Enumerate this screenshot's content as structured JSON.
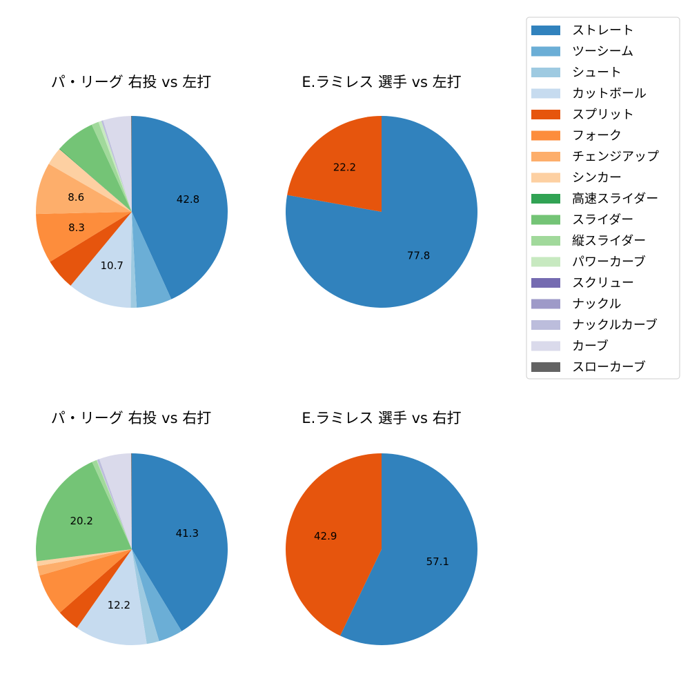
{
  "chart_data": [
    {
      "type": "pie",
      "title": "パ・リーグ 右投 vs 左打",
      "slices": [
        {
          "category": "ストレート",
          "value": 42.8,
          "label": "42.8"
        },
        {
          "category": "ツーシーム",
          "value": 5.9,
          "label": ""
        },
        {
          "category": "シュート",
          "value": 1.0,
          "label": ""
        },
        {
          "category": "カットボール",
          "value": 10.7,
          "label": "10.7"
        },
        {
          "category": "スプリット",
          "value": 5.2,
          "label": ""
        },
        {
          "category": "フォーク",
          "value": 8.3,
          "label": "8.3"
        },
        {
          "category": "チェンジアップ",
          "value": 8.6,
          "label": "8.6"
        },
        {
          "category": "シンカー",
          "value": 3.0,
          "label": ""
        },
        {
          "category": "高速スライダー",
          "value": 0.1,
          "label": ""
        },
        {
          "category": "スライダー",
          "value": 6.6,
          "label": ""
        },
        {
          "category": "縦スライダー",
          "value": 1.2,
          "label": ""
        },
        {
          "category": "パワーカーブ",
          "value": 0.5,
          "label": ""
        },
        {
          "category": "スクリュー",
          "value": 0.0,
          "label": ""
        },
        {
          "category": "ナックル",
          "value": 0.0,
          "label": ""
        },
        {
          "category": "ナックルカーブ",
          "value": 0.3,
          "label": ""
        },
        {
          "category": "カーブ",
          "value": 4.7,
          "label": ""
        },
        {
          "category": "スローカーブ",
          "value": 0.1,
          "label": ""
        }
      ]
    },
    {
      "type": "pie",
      "title": "E.ラミレス 選手 vs 左打",
      "slices": [
        {
          "category": "ストレート",
          "value": 77.8,
          "label": "77.8"
        },
        {
          "category": "スプリット",
          "value": 22.2,
          "label": "22.2"
        }
      ]
    },
    {
      "type": "pie",
      "title": "パ・リーグ 右投 vs 右打",
      "slices": [
        {
          "category": "ストレート",
          "value": 41.3,
          "label": "41.3"
        },
        {
          "category": "ツーシーム",
          "value": 4.1,
          "label": ""
        },
        {
          "category": "シュート",
          "value": 2.1,
          "label": ""
        },
        {
          "category": "カットボール",
          "value": 12.2,
          "label": "12.2"
        },
        {
          "category": "スプリット",
          "value": 3.8,
          "label": ""
        },
        {
          "category": "フォーク",
          "value": 7.1,
          "label": ""
        },
        {
          "category": "チェンジアップ",
          "value": 1.6,
          "label": ""
        },
        {
          "category": "シンカー",
          "value": 0.8,
          "label": ""
        },
        {
          "category": "高速スライダー",
          "value": 0.0,
          "label": ""
        },
        {
          "category": "スライダー",
          "value": 20.2,
          "label": "20.2"
        },
        {
          "category": "縦スライダー",
          "value": 0.8,
          "label": ""
        },
        {
          "category": "パワーカーブ",
          "value": 0.1,
          "label": ""
        },
        {
          "category": "スクリュー",
          "value": 0.0,
          "label": ""
        },
        {
          "category": "ナックル",
          "value": 0.0,
          "label": ""
        },
        {
          "category": "ナックルカーブ",
          "value": 0.4,
          "label": ""
        },
        {
          "category": "カーブ",
          "value": 5.4,
          "label": ""
        },
        {
          "category": "スローカーブ",
          "value": 0.1,
          "label": ""
        }
      ]
    },
    {
      "type": "pie",
      "title": "E.ラミレス 選手 vs 右打",
      "slices": [
        {
          "category": "ストレート",
          "value": 57.1,
          "label": "57.1"
        },
        {
          "category": "スプリット",
          "value": 42.9,
          "label": "42.9"
        }
      ]
    }
  ],
  "legend": {
    "placement": "top-right",
    "items": [
      {
        "name": "ストレート",
        "color": "#3182bd"
      },
      {
        "name": "ツーシーム",
        "color": "#6baed6"
      },
      {
        "name": "シュート",
        "color": "#9ecae1"
      },
      {
        "name": "カットボール",
        "color": "#c6dbef"
      },
      {
        "name": "スプリット",
        "color": "#e6550d"
      },
      {
        "name": "フォーク",
        "color": "#fd8d3c"
      },
      {
        "name": "チェンジアップ",
        "color": "#fdae6b"
      },
      {
        "name": "シンカー",
        "color": "#fdd0a2"
      },
      {
        "name": "高速スライダー",
        "color": "#31a354"
      },
      {
        "name": "スライダー",
        "color": "#74c476"
      },
      {
        "name": "縦スライダー",
        "color": "#a1d99b"
      },
      {
        "name": "パワーカーブ",
        "color": "#c7e9c0"
      },
      {
        "name": "スクリュー",
        "color": "#756bb1"
      },
      {
        "name": "ナックル",
        "color": "#9e9ac8"
      },
      {
        "name": "ナックルカーブ",
        "color": "#bcbddc"
      },
      {
        "name": "カーブ",
        "color": "#dadaeb"
      },
      {
        "name": "スローカーブ",
        "color": "#636363"
      }
    ]
  }
}
